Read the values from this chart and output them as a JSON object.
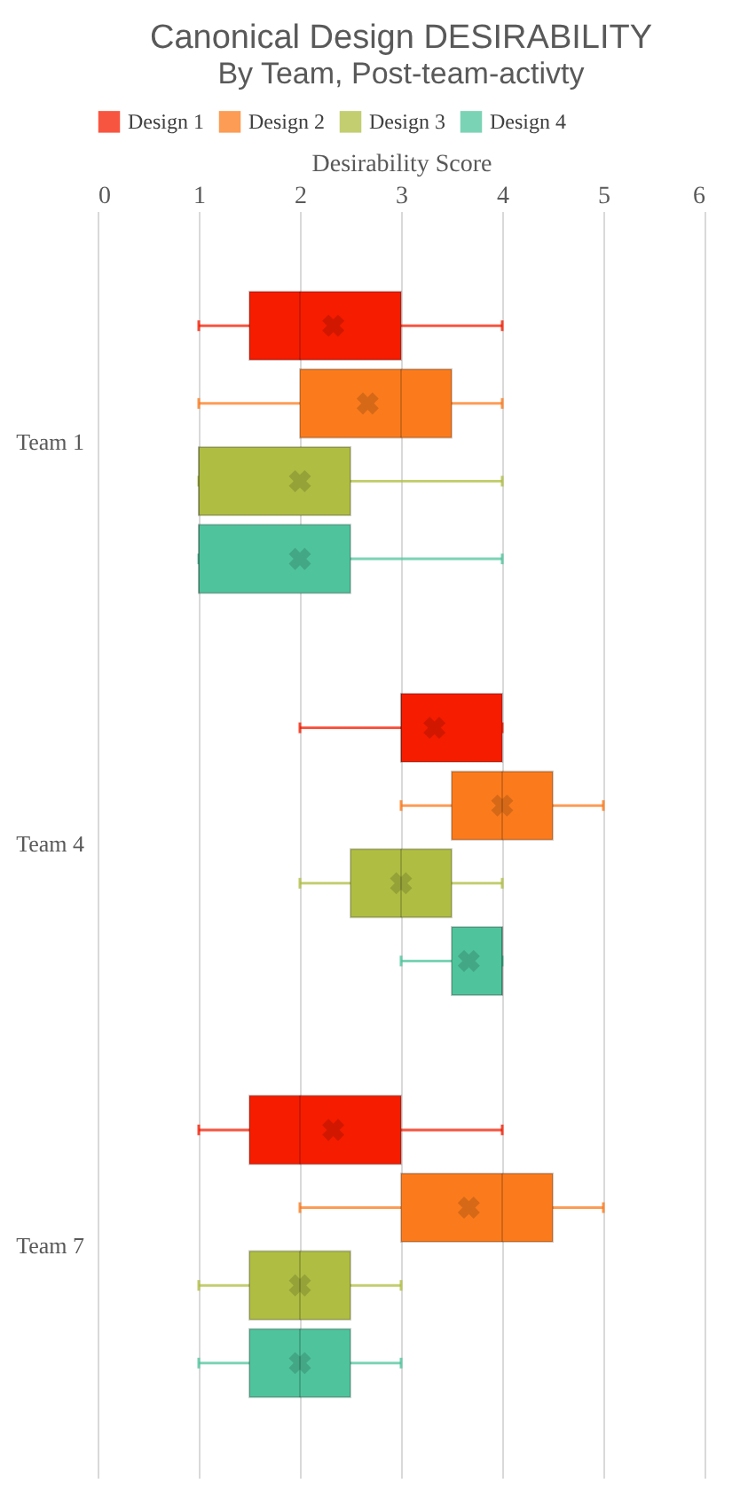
{
  "chart_data": {
    "type": "box",
    "orientation": "horizontal",
    "title": "Canonical Design DESIRABILITY",
    "subtitle": "By Team, Post-team-activty",
    "xlabel": "Desirability Score",
    "categories": [
      "Team 1",
      "Team 4",
      "Team 7"
    ],
    "xlim": [
      0,
      6
    ],
    "xticks": [
      0,
      1,
      2,
      3,
      4,
      5,
      6
    ],
    "grid": "x",
    "legend": "top",
    "marker": "cross",
    "series": [
      {
        "name": "Design 1",
        "color": "#f61c00",
        "boxes": [
          {
            "low": 1,
            "q1": 1.5,
            "median": 2,
            "q3": 3,
            "high": 4,
            "mean": 2.33
          },
          {
            "low": 2,
            "q1": 3,
            "median": 3,
            "q3": 4,
            "high": 4,
            "mean": 3.33
          },
          {
            "low": 1,
            "q1": 1.5,
            "median": 2,
            "q3": 3,
            "high": 4,
            "mean": 2.33
          }
        ]
      },
      {
        "name": "Design 2",
        "color": "#fb7b1c",
        "boxes": [
          {
            "low": 1,
            "q1": 2,
            "median": 3,
            "q3": 3.5,
            "high": 4,
            "mean": 2.67
          },
          {
            "low": 3,
            "q1": 3.5,
            "median": 4,
            "q3": 4.5,
            "high": 5,
            "mean": 4
          },
          {
            "low": 2,
            "q1": 3,
            "median": 4,
            "q3": 4.5,
            "high": 5,
            "mean": 3.67
          }
        ]
      },
      {
        "name": "Design 3",
        "color": "#afbe42",
        "boxes": [
          {
            "low": 1,
            "q1": 1,
            "median": 1,
            "q3": 2.5,
            "high": 4,
            "mean": 2
          },
          {
            "low": 2,
            "q1": 2.5,
            "median": 3,
            "q3": 3.5,
            "high": 4,
            "mean": 3
          },
          {
            "low": 1,
            "q1": 1.5,
            "median": 2,
            "q3": 2.5,
            "high": 3,
            "mean": 2
          }
        ]
      },
      {
        "name": "Design 4",
        "color": "#4fc49c",
        "boxes": [
          {
            "low": 1,
            "q1": 1,
            "median": 1,
            "q3": 2.5,
            "high": 4,
            "mean": 2
          },
          {
            "low": 3,
            "q1": 3.5,
            "median": 4,
            "q3": 4,
            "high": 4,
            "mean": 3.67
          },
          {
            "low": 1,
            "q1": 1.5,
            "median": 2,
            "q3": 2.5,
            "high": 3,
            "mean": 2
          }
        ]
      }
    ]
  }
}
